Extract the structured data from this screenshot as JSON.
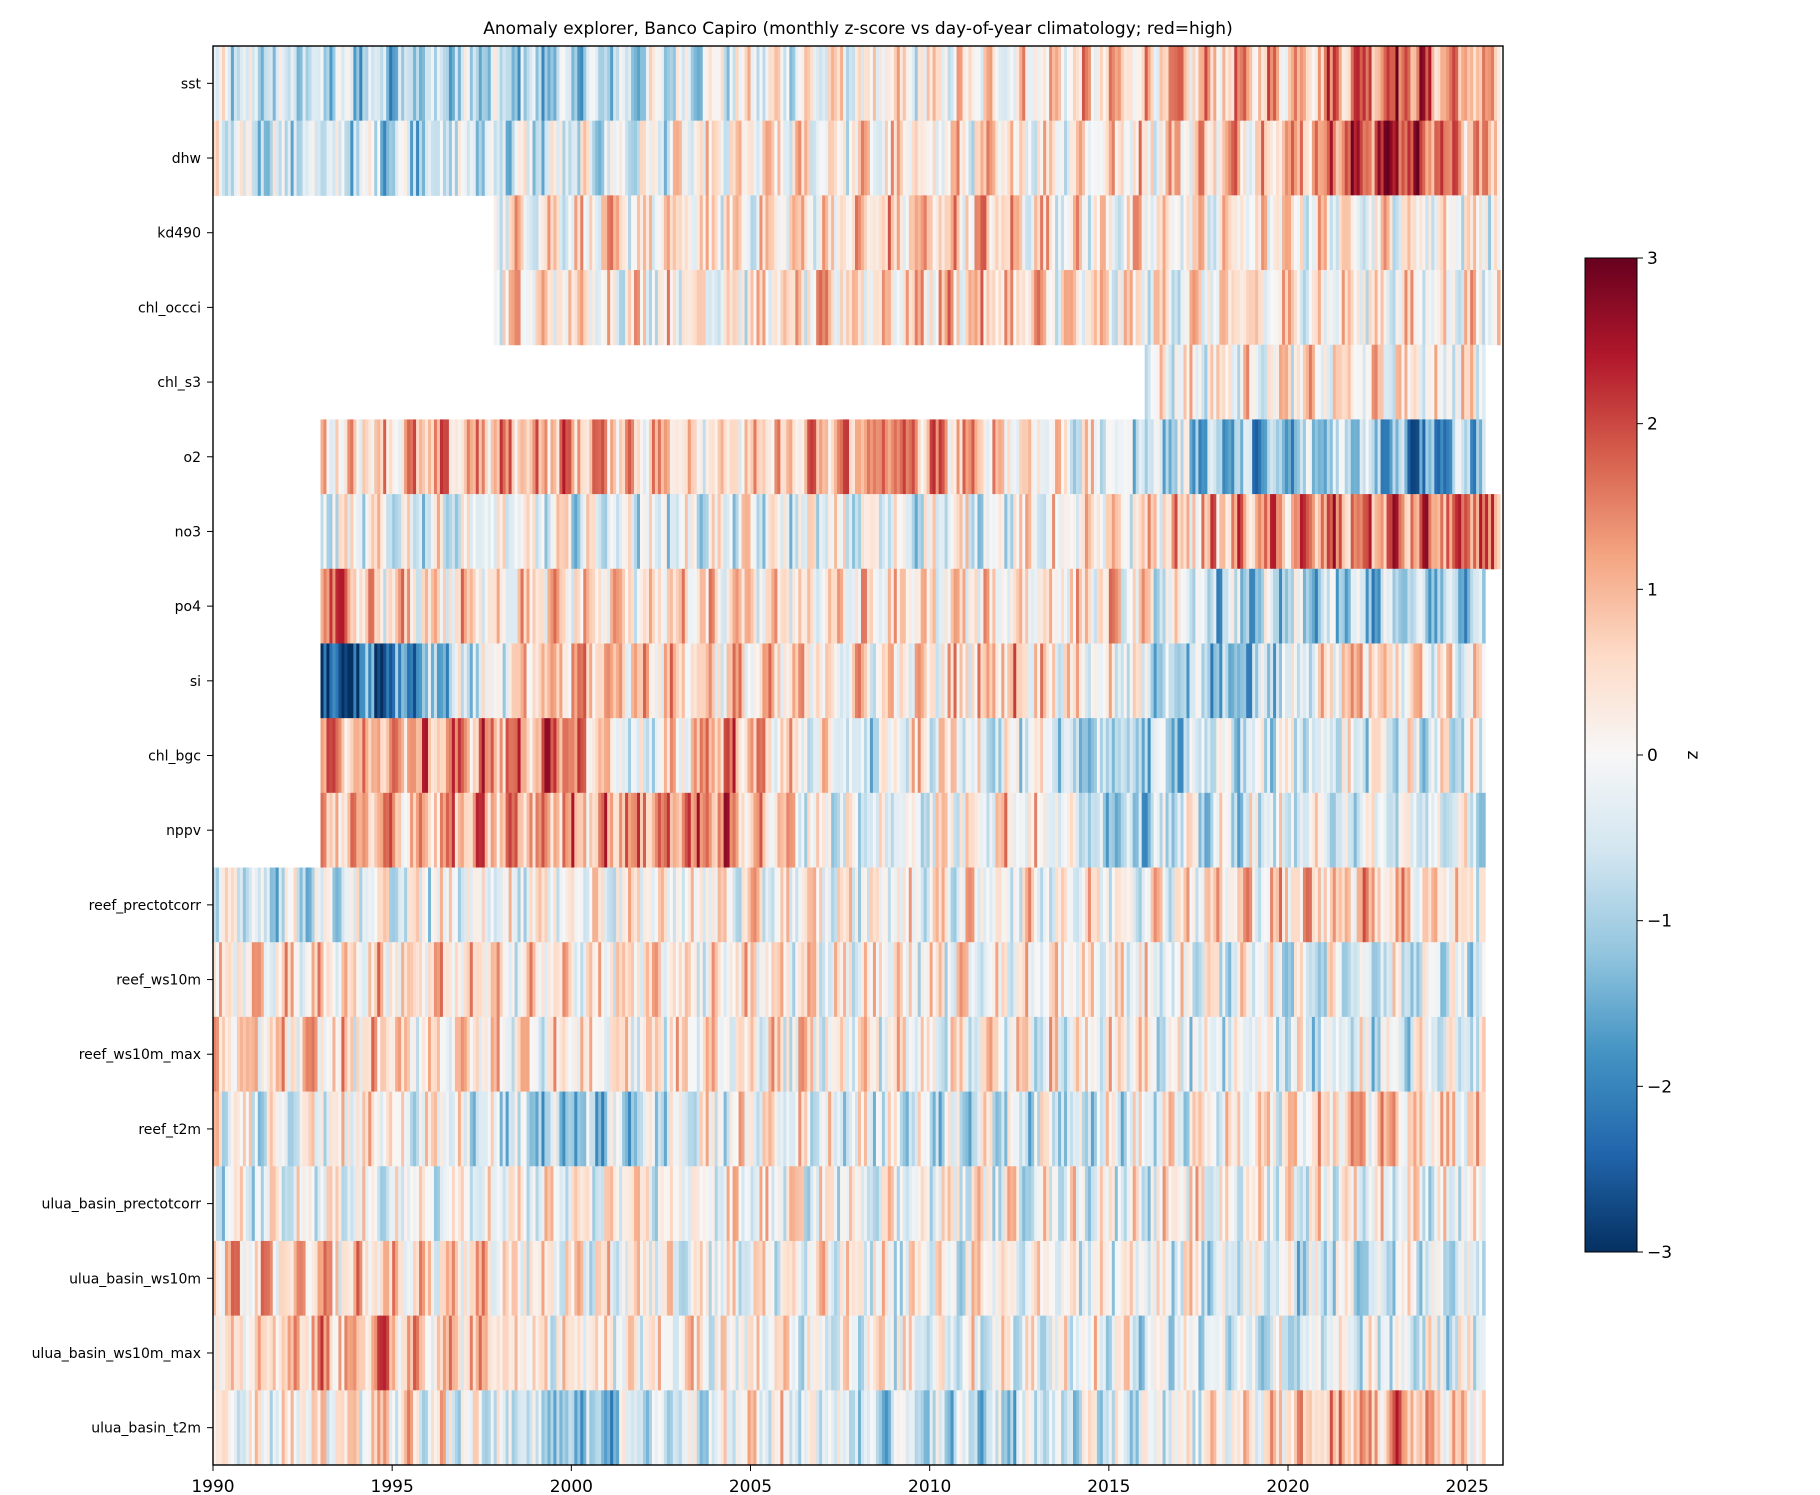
{
  "chart_data": {
    "type": "heatmap",
    "title": "Anomaly explorer, Banco Capiro (monthly z-score vs day-of-year climatology; red=high)",
    "xlabel": "",
    "ylabel": "",
    "x_range": [
      1990,
      2026
    ],
    "x_ticks": [
      1990,
      1995,
      2000,
      2005,
      2010,
      2015,
      2020,
      2025
    ],
    "color_range": [
      -3,
      3
    ],
    "colormap": "RdBu_r",
    "colorbar": {
      "label": "z",
      "ticks": [
        3,
        2,
        1,
        0,
        -1,
        -2,
        -3
      ],
      "tick_labels": [
        "3",
        "2",
        "1",
        "0",
        "−1",
        "−2",
        "−3"
      ]
    },
    "grid": false,
    "rows": [
      {
        "name": "sst",
        "start": 1990.0,
        "end": 2025.9,
        "level": [
          [
            1990,
            -0.6
          ],
          [
            1995,
            -0.8
          ],
          [
            2000,
            -1.0
          ],
          [
            2005,
            0.0
          ],
          [
            2010,
            0.1
          ],
          [
            2015,
            0.6
          ],
          [
            2020,
            1.0
          ],
          [
            2023,
            2.0
          ],
          [
            2025,
            1.0
          ]
        ]
      },
      {
        "name": "dhw",
        "start": 1990.0,
        "end": 2025.9,
        "level": [
          [
            1990,
            -0.5
          ],
          [
            1995,
            -0.6
          ],
          [
            2000,
            -0.5
          ],
          [
            2005,
            0.2
          ],
          [
            2010,
            0.3
          ],
          [
            2015,
            0.4
          ],
          [
            2020,
            1.0
          ],
          [
            2023,
            2.5
          ],
          [
            2025,
            1.0
          ]
        ]
      },
      {
        "name": "kd490",
        "start": 1997.8,
        "end": 2025.9,
        "level": [
          [
            1997.8,
            0.4
          ],
          [
            2005,
            0.3
          ],
          [
            2011,
            0.8
          ],
          [
            2015,
            0.2
          ],
          [
            2020,
            0.3
          ],
          [
            2025,
            0.2
          ]
        ]
      },
      {
        "name": "chl_occci",
        "start": 1997.8,
        "end": 2025.9,
        "level": [
          [
            1997.8,
            0.4
          ],
          [
            2005,
            0.3
          ],
          [
            2011,
            0.8
          ],
          [
            2015,
            0.2
          ],
          [
            2020,
            0.3
          ],
          [
            2025,
            0.2
          ]
        ]
      },
      {
        "name": "chl_s3",
        "start": 2016.0,
        "end": 2025.5,
        "level": [
          [
            2016,
            0.1
          ],
          [
            2020,
            0.3
          ],
          [
            2025,
            0.2
          ]
        ]
      },
      {
        "name": "o2",
        "start": 1993.0,
        "end": 2025.5,
        "level": [
          [
            1993,
            0.6
          ],
          [
            2000,
            1.2
          ],
          [
            2005,
            0.4
          ],
          [
            2008.8,
            1.5
          ],
          [
            2012,
            0.6
          ],
          [
            2015,
            -0.2
          ],
          [
            2019.5,
            -1.6
          ],
          [
            2022,
            -0.5
          ],
          [
            2023.8,
            -2.0
          ],
          [
            2025,
            -1.0
          ]
        ]
      },
      {
        "name": "no3",
        "start": 1993.0,
        "end": 2025.9,
        "level": [
          [
            1993,
            -0.2
          ],
          [
            2005,
            -0.2
          ],
          [
            2010,
            -0.2
          ],
          [
            2015,
            0.2
          ],
          [
            2018,
            1.0
          ],
          [
            2022,
            1.5
          ],
          [
            2025,
            1.5
          ]
        ]
      },
      {
        "name": "po4",
        "start": 1993.0,
        "end": 2025.5,
        "level": [
          [
            1993,
            2.0
          ],
          [
            1994,
            0.5
          ],
          [
            2000,
            0.5
          ],
          [
            2005,
            0.4
          ],
          [
            2010,
            0.3
          ],
          [
            2015,
            0.5
          ],
          [
            2018.5,
            -1.0
          ],
          [
            2022,
            -1.0
          ],
          [
            2025,
            -1.0
          ]
        ]
      },
      {
        "name": "si",
        "start": 1993.0,
        "end": 2025.5,
        "level": [
          [
            1993,
            -2.5
          ],
          [
            1995,
            -2.0
          ],
          [
            1997,
            -0.5
          ],
          [
            2000,
            1.0
          ],
          [
            2005,
            0.5
          ],
          [
            2010,
            0.3
          ],
          [
            2012,
            1.0
          ],
          [
            2015,
            0.0
          ],
          [
            2018.5,
            -1.5
          ],
          [
            2022,
            1.0
          ],
          [
            2025,
            0.0
          ]
        ]
      },
      {
        "name": "chl_bgc",
        "start": 1993.0,
        "end": 2025.5,
        "level": [
          [
            1993,
            1.0
          ],
          [
            1996,
            1.2
          ],
          [
            2000,
            1.5
          ],
          [
            2002,
            -0.6
          ],
          [
            2004,
            1.5
          ],
          [
            2008,
            -0.6
          ],
          [
            2010,
            0.3
          ],
          [
            2015,
            -1.0
          ],
          [
            2020,
            -0.3
          ],
          [
            2025,
            -0.3
          ]
        ]
      },
      {
        "name": "nppv",
        "start": 1993.0,
        "end": 2025.5,
        "level": [
          [
            1993,
            0.8
          ],
          [
            1996,
            1.0
          ],
          [
            2000,
            1.2
          ],
          [
            2004,
            1.5
          ],
          [
            2008,
            -0.5
          ],
          [
            2012,
            0.6
          ],
          [
            2015,
            -0.8
          ],
          [
            2020,
            -0.3
          ],
          [
            2025,
            -0.4
          ]
        ]
      },
      {
        "name": "reef_prectotcorr",
        "start": 1990.0,
        "end": 2025.5,
        "level": [
          [
            1990,
            -0.5
          ],
          [
            1993,
            -0.4
          ],
          [
            2000,
            0.2
          ],
          [
            2005,
            0.1
          ],
          [
            2010,
            0.1
          ],
          [
            2015,
            0.2
          ],
          [
            2020,
            0.6
          ],
          [
            2022,
            1.0
          ],
          [
            2025,
            0.3
          ]
        ]
      },
      {
        "name": "reef_ws10m",
        "start": 1990.0,
        "end": 2025.5,
        "level": [
          [
            1990,
            0.4
          ],
          [
            1995,
            0.5
          ],
          [
            2000,
            0.3
          ],
          [
            2005,
            0.3
          ],
          [
            2010,
            0.2
          ],
          [
            2015,
            0.1
          ],
          [
            2020,
            -0.3
          ],
          [
            2025,
            -0.4
          ]
        ]
      },
      {
        "name": "reef_ws10m_max",
        "start": 1990.0,
        "end": 2025.5,
        "level": [
          [
            1990,
            0.4
          ],
          [
            1995,
            0.5
          ],
          [
            2000,
            0.3
          ],
          [
            2005,
            0.3
          ],
          [
            2010,
            0.2
          ],
          [
            2015,
            0.1
          ],
          [
            2020,
            -0.3
          ],
          [
            2025,
            -0.4
          ]
        ]
      },
      {
        "name": "reef_t2m",
        "start": 1990.0,
        "end": 2025.5,
        "level": [
          [
            1990,
            -0.1
          ],
          [
            1995,
            0.3
          ],
          [
            2000,
            -1.2
          ],
          [
            2005,
            0.2
          ],
          [
            2010,
            -0.4
          ],
          [
            2015,
            -0.3
          ],
          [
            2020,
            0.3
          ],
          [
            2023,
            1.0
          ],
          [
            2025,
            0.4
          ]
        ]
      },
      {
        "name": "ulua_basin_prectotcorr",
        "start": 1990.0,
        "end": 2025.5,
        "level": [
          [
            1990,
            -0.3
          ],
          [
            1995,
            -0.2
          ],
          [
            2000,
            0.0
          ],
          [
            2005,
            0.1
          ],
          [
            2010,
            0.0
          ],
          [
            2015,
            0.0
          ],
          [
            2020,
            0.1
          ],
          [
            2025,
            0.0
          ]
        ]
      },
      {
        "name": "ulua_basin_ws10m",
        "start": 1990.0,
        "end": 2025.5,
        "level": [
          [
            1990,
            0.6
          ],
          [
            1995,
            0.6
          ],
          [
            2000,
            0.2
          ],
          [
            2005,
            0.1
          ],
          [
            2010,
            0.0
          ],
          [
            2015,
            0.0
          ],
          [
            2020,
            -0.4
          ],
          [
            2025,
            -0.3
          ]
        ]
      },
      {
        "name": "ulua_basin_ws10m_max",
        "start": 1990.0,
        "end": 2025.5,
        "level": [
          [
            1990,
            0.7
          ],
          [
            1994.5,
            1.2
          ],
          [
            2000,
            0.2
          ],
          [
            2005,
            0.1
          ],
          [
            2010,
            0.0
          ],
          [
            2015,
            -0.1
          ],
          [
            2020,
            -0.4
          ],
          [
            2025,
            -0.3
          ]
        ]
      },
      {
        "name": "ulua_basin_t2m",
        "start": 1990.0,
        "end": 2025.5,
        "level": [
          [
            1990,
            0.1
          ],
          [
            1995,
            0.5
          ],
          [
            2000,
            -1.2
          ],
          [
            2005,
            0.2
          ],
          [
            2010,
            -0.8
          ],
          [
            2015,
            -0.5
          ],
          [
            2020,
            0.6
          ],
          [
            2023,
            1.2
          ],
          [
            2025,
            0.5
          ]
        ]
      }
    ]
  }
}
